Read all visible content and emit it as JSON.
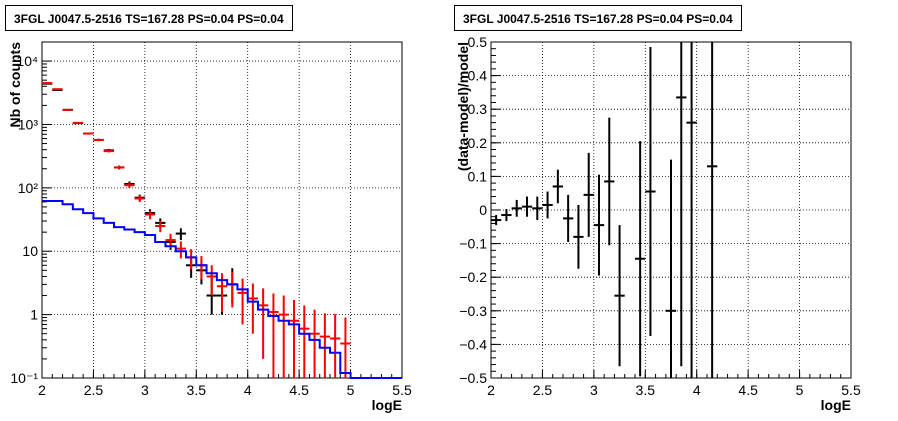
{
  "chart_data": [
    {
      "type": "histogram",
      "title": "3FGL J0047.5-2516 TS=167.28 PS=0.04 PS=0.04",
      "xlabel": "logE",
      "ylabel": "Nb of counts",
      "xlim": [
        2,
        5.5
      ],
      "ylim": [
        0.1,
        20000
      ],
      "yscale": "log",
      "grid": true,
      "x_ticks": [
        "2",
        "2.5",
        "3",
        "3.5",
        "4",
        "4.5",
        "5",
        "5.5"
      ],
      "y_ticks": [
        {
          "value": 0.1,
          "label": "10⁻¹"
        },
        {
          "value": 1,
          "label": "1"
        },
        {
          "value": 10,
          "label": "10"
        },
        {
          "value": 100,
          "label": "10²"
        },
        {
          "value": 1000,
          "label": "10³"
        },
        {
          "value": 10000,
          "label": "10⁴"
        }
      ],
      "series": [
        {
          "color": "#000000",
          "style": "errorbar",
          "x": [
            2.05,
            2.15,
            2.25,
            2.35,
            2.45,
            2.55,
            2.65,
            2.75,
            2.85,
            2.95,
            3.05,
            3.15,
            3.25,
            3.35,
            3.45,
            3.55,
            3.65,
            3.75,
            3.85
          ],
          "y": [
            4400,
            3500,
            1700,
            1050,
            720,
            570,
            390,
            210,
            115,
            70,
            40,
            28,
            14,
            19,
            6,
            5,
            2,
            2,
            3
          ],
          "yerr_low": [
            60,
            55,
            40,
            32,
            27,
            24,
            20,
            14,
            11,
            8,
            6,
            5,
            3.5,
            4,
            2.2,
            2,
            1,
            1,
            1.5
          ],
          "yerr_high": [
            60,
            55,
            40,
            32,
            27,
            24,
            20,
            14,
            11,
            8,
            6,
            5,
            3.5,
            4,
            2.2,
            2.3,
            2.3,
            2.3,
            2.4
          ]
        },
        {
          "color": "#ff0000",
          "style": "errorbar",
          "x": [
            2.05,
            2.15,
            2.25,
            2.35,
            2.45,
            2.55,
            2.65,
            2.75,
            2.85,
            2.95,
            3.05,
            3.15,
            3.25,
            3.35,
            3.45,
            3.55,
            3.65,
            3.75,
            3.85,
            3.95,
            4.05,
            4.15,
            4.25,
            4.35,
            4.45,
            4.55,
            4.65,
            4.75,
            4.85,
            4.95
          ],
          "y": [
            4500,
            3600,
            1700,
            1060,
            720,
            570,
            380,
            210,
            110,
            68,
            38,
            25,
            15,
            11,
            8,
            6,
            4,
            2.8,
            3,
            2.2,
            1.8,
            1.4,
            1.1,
            1.0,
            0.8,
            0.6,
            0.5,
            0.45,
            0.42,
            0.35
          ],
          "yerr_low": [
            67,
            60,
            41,
            33,
            27,
            24,
            19,
            14,
            10,
            8,
            6,
            5,
            3.8,
            3.3,
            2.8,
            2.4,
            2,
            1.7,
            1.7,
            1.5,
            1.3,
            1.2,
            1.0,
            0.99,
            0.79,
            0.59,
            0.49,
            0.44,
            0.41,
            0.34
          ],
          "yerr_high": [
            67,
            60,
            41,
            33,
            27,
            24,
            19,
            14,
            10,
            8,
            6,
            5,
            3.8,
            3.3,
            2.8,
            2.4,
            2,
            1.7,
            1.7,
            1.5,
            1.3,
            1.2,
            1.05,
            1.0,
            0.9,
            0.8,
            0.7,
            0.6,
            0.6,
            0.55
          ]
        },
        {
          "color": "#0000ff",
          "style": "step",
          "edges": [
            2.0,
            2.1,
            2.2,
            2.3,
            2.4,
            2.5,
            2.6,
            2.7,
            2.8,
            2.9,
            3.0,
            3.1,
            3.2,
            3.3,
            3.4,
            3.5,
            3.6,
            3.7,
            3.8,
            3.9,
            4.0,
            4.1,
            4.2,
            4.3,
            4.4,
            4.5,
            4.6,
            4.7,
            4.8,
            4.9,
            5.0,
            5.5
          ],
          "values": [
            62,
            62,
            55,
            46,
            40,
            33,
            28,
            24,
            22,
            20,
            18,
            14,
            12,
            10,
            8,
            6,
            4.5,
            3.5,
            3,
            2.5,
            1.6,
            1.2,
            0.95,
            0.8,
            0.7,
            0.5,
            0.4,
            0.3,
            0.25,
            0.12,
            0.1
          ]
        }
      ]
    },
    {
      "type": "errorbar",
      "title": "3FGL J0047.5-2516 TS=167.28 PS=0.04 PS=0.04",
      "xlabel": "logE",
      "ylabel": "(data-model)/model",
      "xlim": [
        2,
        5.5
      ],
      "ylim": [
        -0.5,
        0.5
      ],
      "grid": true,
      "x_ticks": [
        "2",
        "2.5",
        "3",
        "3.5",
        "4",
        "4.5",
        "5",
        "5.5"
      ],
      "y_ticks": [
        "−0.5",
        "−0.4",
        "−0.3",
        "−0.2",
        "−0.1",
        "0",
        "0.1",
        "0.2",
        "0.3",
        "0.4",
        "0.5"
      ],
      "series": [
        {
          "color": "#000000",
          "x": [
            2.05,
            2.15,
            2.25,
            2.35,
            2.45,
            2.55,
            2.65,
            2.75,
            2.85,
            2.95,
            3.05,
            3.15,
            3.25,
            3.45,
            3.55,
            3.75,
            3.85,
            3.95,
            4.15
          ],
          "y": [
            -0.03,
            -0.015,
            0.005,
            0.01,
            0.005,
            0.015,
            0.07,
            -0.025,
            -0.08,
            0.045,
            -0.045,
            0.085,
            -0.255,
            -0.145,
            0.055,
            -0.3,
            0.335,
            0.26,
            0.13
          ],
          "yerr_low": [
            0.015,
            0.018,
            0.025,
            0.03,
            0.035,
            0.04,
            0.05,
            0.07,
            0.095,
            0.125,
            0.15,
            0.19,
            0.21,
            0.35,
            0.43,
            0.45,
            0.8,
            0.8,
            0.7
          ],
          "yerr_high": [
            0.015,
            0.018,
            0.025,
            0.03,
            0.035,
            0.04,
            0.05,
            0.07,
            0.095,
            0.125,
            0.15,
            0.19,
            0.21,
            0.35,
            0.43,
            0.45,
            0.8,
            0.8,
            0.7
          ]
        }
      ]
    }
  ]
}
